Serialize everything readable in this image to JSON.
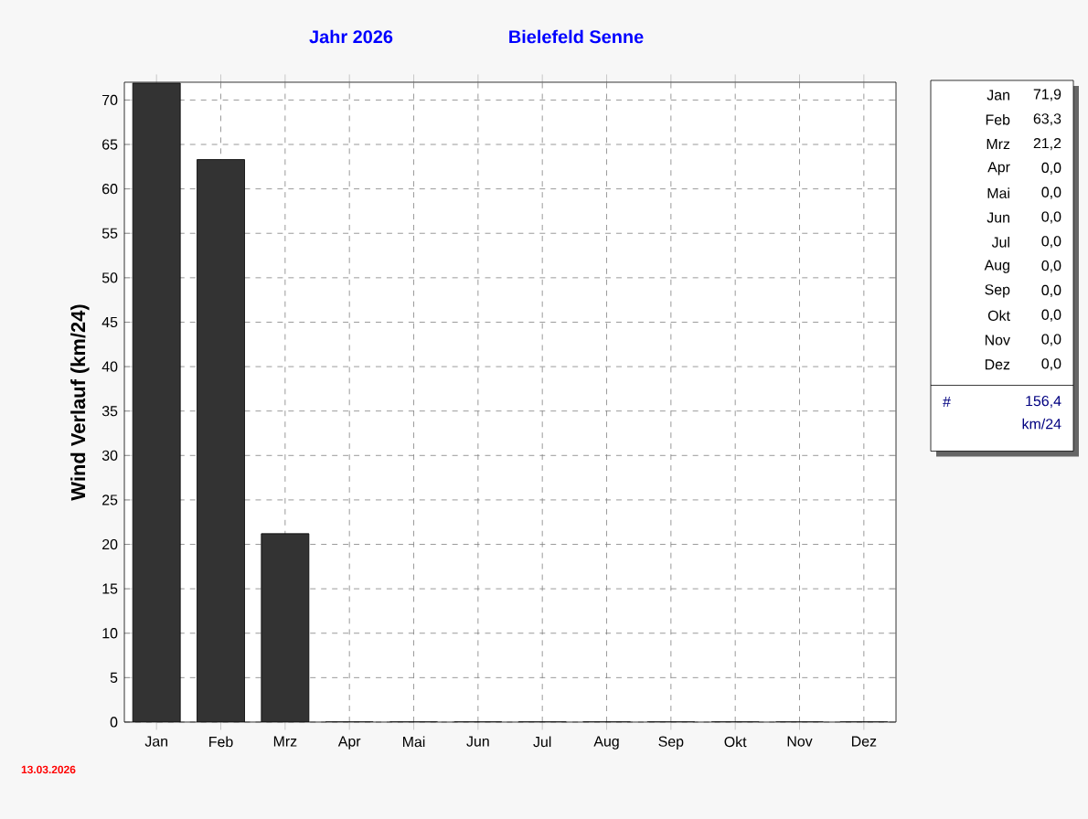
{
  "chart_data": {
    "type": "bar",
    "title": "Jahr  2026",
    "subtitle": "Bielefeld Senne",
    "ylabel": "Wind Verlauf  (km/24)",
    "categories": [
      "Jan",
      "Feb",
      "Mrz",
      "Apr",
      "Mai",
      "Jun",
      "Jul",
      "Aug",
      "Sep",
      "Okt",
      "Nov",
      "Dez"
    ],
    "values": [
      71.9,
      63.3,
      21.2,
      0,
      0,
      0,
      0,
      0,
      0,
      0,
      0,
      0
    ],
    "color": "#333333",
    "ylim": [
      0,
      72
    ],
    "yticks": [
      0,
      5,
      10,
      15,
      20,
      25,
      30,
      35,
      40,
      45,
      50,
      55,
      60,
      65,
      70
    ],
    "grid": true,
    "annotations": [
      "#",
      "156,4",
      "km/24",
      "13.03.2026",
      "71,9",
      "63,3",
      "21,2",
      "0,0",
      "0,0",
      "0,0",
      "0,0",
      "0,0",
      "0,0",
      "0,0",
      "0,0",
      "0,0"
    ]
  }
}
